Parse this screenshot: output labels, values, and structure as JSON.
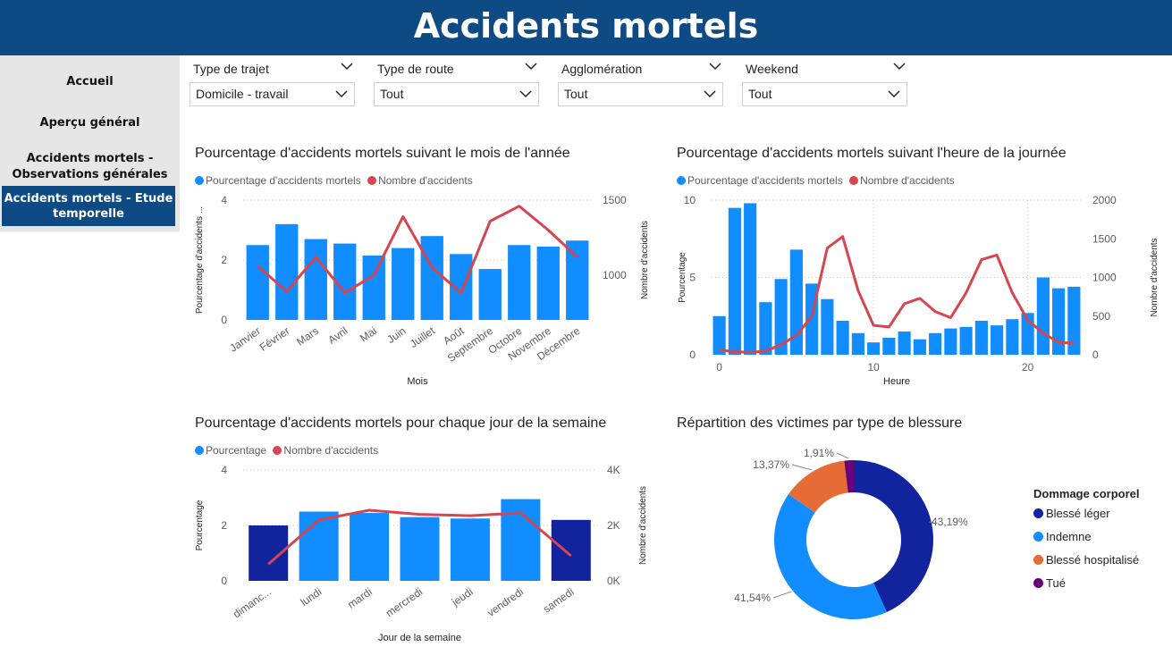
{
  "header": {
    "title": "Accidents mortels"
  },
  "nav": {
    "items": [
      {
        "label": "Accueil",
        "active": false
      },
      {
        "label": "Aperçu général",
        "active": false
      },
      {
        "label_line1": "Accidents mortels -",
        "label_line2": "Observations générales",
        "active": false
      },
      {
        "label_line1": "Accidents mortels - Etude",
        "label_line2": "temporelle",
        "active": true
      }
    ]
  },
  "slicers": [
    {
      "title": "Type de trajet",
      "value": "Domicile - travail"
    },
    {
      "title": "Type de route",
      "value": "Tout"
    },
    {
      "title": "Agglomération",
      "value": "Tout"
    },
    {
      "title": "Weekend",
      "value": "Tout"
    }
  ],
  "colors": {
    "bar": "#118DFF",
    "bar_dark": "#12239E",
    "line": "#D64550",
    "nav": "#0E4A84"
  },
  "chart_data": [
    {
      "type": "bar+line",
      "title": "Pourcentage d'accidents mortels suivant le mois de l'année",
      "legend": [
        "Pourcentage d'accidents mortels",
        "Nombre d'accidents"
      ],
      "xlabel": "Mois",
      "ylabel": "Pourcentage d'accidents ...",
      "y2label": "Nombre d'accidents",
      "categories": [
        "Janvier",
        "Février",
        "Mars",
        "Avril",
        "Mai",
        "Juin",
        "Juillet",
        "Août",
        "Septembre",
        "Octobre",
        "Novembre",
        "Décembre"
      ],
      "series": [
        {
          "name": "Pourcentage d'accidents mortels",
          "axis": "left",
          "values": [
            2.5,
            3.2,
            2.7,
            2.55,
            2.15,
            2.4,
            2.8,
            2.2,
            1.7,
            2.5,
            2.45,
            2.65
          ]
        },
        {
          "name": "Nombre d'accidents",
          "axis": "right",
          "values": [
            1060,
            890,
            1120,
            880,
            1000,
            1390,
            1050,
            880,
            1360,
            1460,
            1300,
            1120
          ]
        }
      ],
      "ylim": [
        0,
        4
      ],
      "yticks": [
        "0",
        "2",
        "4"
      ],
      "y2lim": [
        700,
        1500
      ],
      "y2ticks": [
        {
          "v": 1000,
          "label": "1000"
        },
        {
          "v": 1500,
          "label": "1500"
        }
      ]
    },
    {
      "type": "bar+line",
      "title": "Pourcentage d'accidents mortels suivant l'heure de la journée",
      "legend": [
        "Pourcentage d'accidents mortels",
        "Nombre d'accidents"
      ],
      "xlabel": "Heure",
      "ylabel": "Pourcentage",
      "y2label": "Nombre d'accidents",
      "x": [
        0,
        1,
        2,
        3,
        4,
        5,
        6,
        7,
        8,
        9,
        10,
        11,
        12,
        13,
        14,
        15,
        16,
        17,
        18,
        19,
        20,
        21,
        22,
        23
      ],
      "xticks": [
        {
          "v": 0,
          "label": "0"
        },
        {
          "v": 10,
          "label": "10"
        },
        {
          "v": 20,
          "label": "20"
        }
      ],
      "series": [
        {
          "name": "Pourcentage d'accidents mortels",
          "axis": "left",
          "values": [
            2.5,
            9.5,
            9.8,
            3.4,
            4.9,
            6.8,
            4.6,
            3.6,
            2.2,
            1.4,
            0.8,
            1.1,
            1.5,
            1.0,
            1.4,
            1.7,
            1.8,
            2.2,
            1.9,
            2.3,
            2.7,
            5.0,
            4.3,
            4.4
          ]
        },
        {
          "name": "Nombre d'accidents",
          "axis": "right",
          "values": [
            60,
            40,
            30,
            50,
            130,
            250,
            500,
            1380,
            1530,
            830,
            380,
            360,
            660,
            730,
            560,
            480,
            800,
            1230,
            1290,
            800,
            450,
            280,
            160,
            150
          ]
        }
      ],
      "ylim": [
        0,
        10
      ],
      "yticks": [
        {
          "v": 0,
          "label": "0"
        },
        {
          "v": 5,
          "label": "5"
        },
        {
          "v": 10,
          "label": "10"
        }
      ],
      "y2lim": [
        0,
        2000
      ],
      "y2ticks": [
        {
          "v": 0,
          "label": "0"
        },
        {
          "v": 500,
          "label": "500"
        },
        {
          "v": 1000,
          "label": "1000"
        },
        {
          "v": 1500,
          "label": "1500"
        },
        {
          "v": 2000,
          "label": "2000"
        }
      ]
    },
    {
      "type": "bar+line",
      "title": "Pourcentage d'accidents mortels pour chaque jour de la semaine",
      "legend": [
        "Pourcentage",
        "Nombre d'accidents"
      ],
      "xlabel": "Jour de la semaine",
      "ylabel": "Pourcentage",
      "y2label": "Nombre d'accidents",
      "categories": [
        "dimanc...",
        "lundi",
        "mardi",
        "mercredi",
        "jeudi",
        "vendredi",
        "samedi"
      ],
      "highlight": [
        true,
        false,
        false,
        false,
        false,
        false,
        true
      ],
      "series": [
        {
          "name": "Pourcentage",
          "axis": "left",
          "values": [
            2.0,
            2.5,
            2.45,
            2.3,
            2.25,
            2.95,
            2.2
          ]
        },
        {
          "name": "Nombre d'accidents",
          "axis": "right",
          "values": [
            600,
            2200,
            2550,
            2400,
            2350,
            2450,
            900
          ]
        }
      ],
      "ylim": [
        0,
        4
      ],
      "yticks": [
        {
          "v": 0,
          "label": "0"
        },
        {
          "v": 2,
          "label": "2"
        },
        {
          "v": 4,
          "label": "4"
        }
      ],
      "y2lim": [
        0,
        4000
      ],
      "y2ticks": [
        {
          "v": 0,
          "label": "0K"
        },
        {
          "v": 2000,
          "label": "2K"
        },
        {
          "v": 4000,
          "label": "4K"
        }
      ]
    },
    {
      "type": "pie",
      "title": "Répartition des victimes par type de blessure",
      "legend_title": "Dommage corporel",
      "slices": [
        {
          "name": "Blessé léger",
          "value": 43.19,
          "label": "43,19%",
          "color": "#12239E"
        },
        {
          "name": "Indemne",
          "value": 41.54,
          "label": "41,54%",
          "color": "#118DFF"
        },
        {
          "name": "Blessé hospitalisé",
          "value": 13.37,
          "label": "13,37%",
          "color": "#E66C37"
        },
        {
          "name": "Tué",
          "value": 1.91,
          "label": "1,91%",
          "color": "#6B007B"
        }
      ]
    }
  ]
}
